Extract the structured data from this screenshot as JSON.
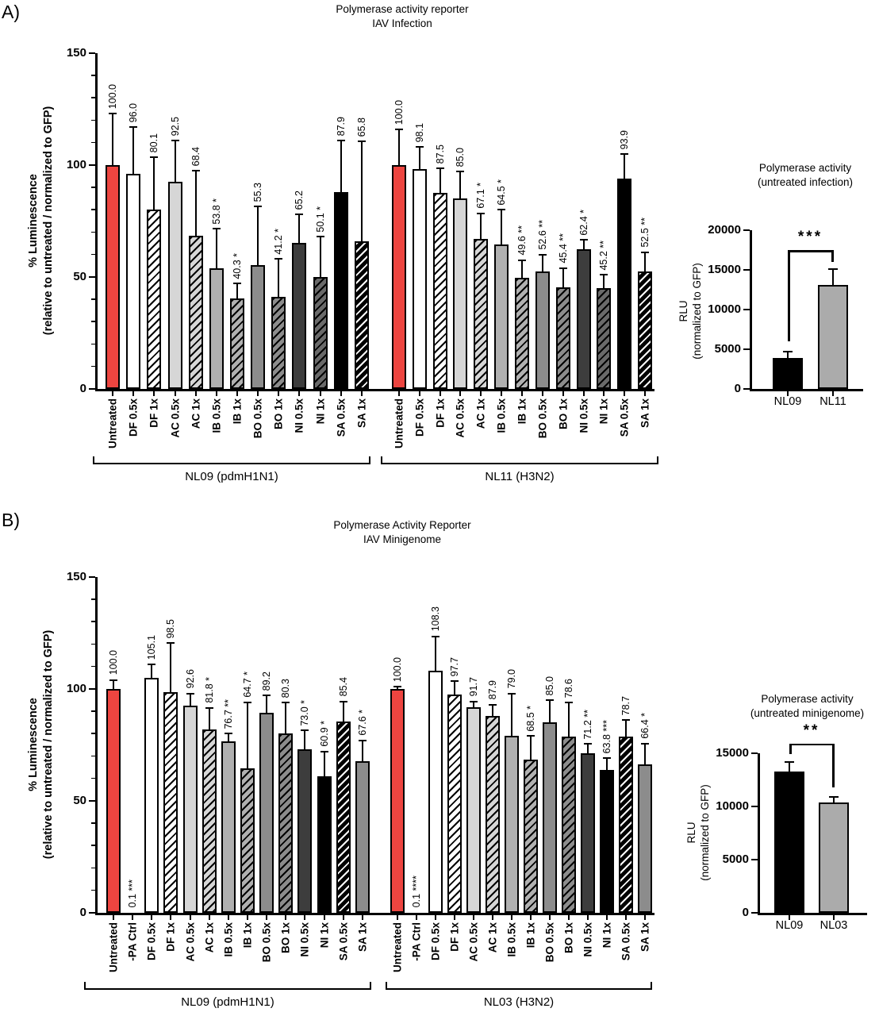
{
  "figure": {
    "panels": [
      {
        "letter": "A)"
      },
      {
        "letter": "B)"
      }
    ]
  },
  "colors": {
    "red": "#ED4540",
    "light_gray": "#D6D6D6",
    "mid_gray": "#B0B0B0",
    "gray": "#8C8C8C",
    "dark_gray": "#3D3D3D",
    "black": "#000000",
    "mini_gray": "#ABABAB"
  },
  "chart_data": [
    {
      "type": "bar",
      "panel": "A",
      "title": "Polymerase activity reporter",
      "subtitle": "IAV Infection",
      "ylabel_line1": "% Luminescence",
      "ylabel_line2": "(relative to untreated / normalized to GFP)",
      "ylim": [
        0,
        150
      ],
      "ymajor": 50,
      "yminor": 10,
      "grid": false,
      "groups": [
        {
          "label": "NL09 (pdmH1N1)",
          "bars": [
            {
              "label": "Untreated",
              "display": "100.0",
              "err_top": 123,
              "sig": "",
              "style": "red"
            },
            {
              "label": "DF 0.5x",
              "display": "96.0",
              "err_top": 117,
              "sig": "",
              "style": "white"
            },
            {
              "label": "DF 1x",
              "display": "80.1",
              "err_top": 103.5,
              "sig": "",
              "style": "hatch_white"
            },
            {
              "label": "AC 0.5x",
              "display": "92.5",
              "err_top": 111,
              "sig": "",
              "style": "light_gray"
            },
            {
              "label": "AC 1x",
              "display": "68.4",
              "err_top": 97.5,
              "sig": "",
              "style": "hatch_light_gray"
            },
            {
              "label": "IB 0.5x",
              "display": "53.8",
              "err_top": 71.5,
              "sig": "*",
              "style": "mid_gray"
            },
            {
              "label": "IB 1x",
              "display": "40.3",
              "err_top": 47,
              "sig": "*",
              "style": "hatch_mid_gray"
            },
            {
              "label": "BO 0.5x",
              "display": "55.3",
              "err_top": 81.5,
              "sig": "",
              "style": "gray"
            },
            {
              "label": "BO 1x",
              "display": "41.2",
              "err_top": 58,
              "sig": "*",
              "style": "hatch_gray"
            },
            {
              "label": "NI 0.5x",
              "display": "65.2",
              "err_top": 78,
              "sig": "",
              "style": "dark_gray"
            },
            {
              "label": "NI 1x",
              "display": "50.1",
              "err_top": 68,
              "sig": "*",
              "style": "hatch_dark_gray"
            },
            {
              "label": "SA 0.5x",
              "display": "87.9",
              "err_top": 111,
              "sig": "",
              "style": "black"
            },
            {
              "label": "SA 1x",
              "display": "65.8",
              "err_top": 110.5,
              "sig": "",
              "style": "hatch_black"
            }
          ]
        },
        {
          "label": "NL11 (H3N2)",
          "bars": [
            {
              "label": "Untreated",
              "display": "100.0",
              "err_top": 116,
              "sig": "",
              "style": "red"
            },
            {
              "label": "DF 0.5x",
              "display": "98.1",
              "err_top": 108,
              "sig": "",
              "style": "white"
            },
            {
              "label": "DF 1x",
              "display": "87.5",
              "err_top": 98.5,
              "sig": "",
              "style": "hatch_white"
            },
            {
              "label": "AC 0.5x",
              "display": "85.0",
              "err_top": 97,
              "sig": "",
              "style": "light_gray"
            },
            {
              "label": "AC 1x",
              "display": "67.1",
              "err_top": 78.5,
              "sig": "*",
              "style": "hatch_light_gray"
            },
            {
              "label": "IB 0.5x",
              "display": "64.5",
              "err_top": 80,
              "sig": "*",
              "style": "mid_gray"
            },
            {
              "label": "IB 1x",
              "display": "49.6",
              "err_top": 57.5,
              "sig": "**",
              "style": "hatch_mid_gray"
            },
            {
              "label": "BO 0.5x",
              "display": "52.6",
              "err_top": 60,
              "sig": "**",
              "style": "gray"
            },
            {
              "label": "BO 1x",
              "display": "45.4",
              "err_top": 54,
              "sig": "**",
              "style": "hatch_gray"
            },
            {
              "label": "NI 0.5x",
              "display": "62.4",
              "err_top": 66.5,
              "sig": "*",
              "style": "dark_gray"
            },
            {
              "label": "NI 1x",
              "display": "45.2",
              "err_top": 51,
              "sig": "**",
              "style": "hatch_dark_gray"
            },
            {
              "label": "SA 0.5x",
              "display": "93.9",
              "err_top": 105,
              "sig": "",
              "style": "black"
            },
            {
              "label": "SA 1x",
              "display": "52.5",
              "err_top": 61,
              "sig": "**",
              "style": "hatch_black"
            }
          ]
        }
      ]
    },
    {
      "type": "bar",
      "panel": "A-inset",
      "title": "Polymerase activity",
      "subtitle": "(untreated infection)",
      "ylabel_line1": "RLU",
      "ylabel_line2": "(normalized to GFP)",
      "ylim": [
        0,
        20000
      ],
      "ymajor": 5000,
      "grid": false,
      "categories": [
        "NL09",
        "NL11"
      ],
      "bars": [
        {
          "label": "NL09",
          "value": 3900,
          "err_top": 4700,
          "style": "black"
        },
        {
          "label": "NL11",
          "value": 13100,
          "err_top": 15100,
          "style": "mini_gray"
        }
      ],
      "sig": {
        "label": "***",
        "bar_y": 17500,
        "drop_left_to": 6000,
        "drop_right_to": 16000
      }
    },
    {
      "type": "bar",
      "panel": "B",
      "title": "Polymerase Activity Reporter",
      "subtitle": "IAV Minigenome",
      "ylabel_line1": "% Luminescence",
      "ylabel_line2": "(relative to untreated / normalized to GFP)",
      "ylim": [
        0,
        150
      ],
      "ymajor": 50,
      "yminor": 10,
      "grid": false,
      "groups": [
        {
          "label": "NL09 (pdmH1N1)",
          "bars": [
            {
              "label": "Untreated",
              "display": "100.0",
              "err_top": 104,
              "sig": "",
              "style": "red"
            },
            {
              "label": "-PA Ctrl",
              "display": "0.1",
              "err_top": null,
              "sig": "***",
              "style": "white"
            },
            {
              "label": "DF 0.5x",
              "display": "105.1",
              "err_top": 111,
              "sig": "",
              "style": "white"
            },
            {
              "label": "DF 1x",
              "display": "98.5",
              "err_top": 120.5,
              "sig": "",
              "style": "hatch_white"
            },
            {
              "label": "AC 0.5x",
              "display": "92.6",
              "err_top": 98,
              "sig": "",
              "style": "light_gray"
            },
            {
              "label": "AC 1x",
              "display": "81.8",
              "err_top": 91.5,
              "sig": "*",
              "style": "hatch_light_gray"
            },
            {
              "label": "IB 0.5x",
              "display": "76.7",
              "err_top": 80,
              "sig": "**",
              "style": "mid_gray"
            },
            {
              "label": "IB 1x",
              "display": "64.7",
              "err_top": 94,
              "sig": "*",
              "style": "hatch_mid_gray"
            },
            {
              "label": "BO 0.5x",
              "display": "89.2",
              "err_top": 97,
              "sig": "",
              "style": "gray"
            },
            {
              "label": "BO 1x",
              "display": "80.3",
              "err_top": 94,
              "sig": "",
              "style": "hatch_gray"
            },
            {
              "label": "NI 0.5x",
              "display": "73.0",
              "err_top": 81.5,
              "sig": "*",
              "style": "dark_gray"
            },
            {
              "label": "NI 1x",
              "display": "60.9",
              "err_top": 72,
              "sig": "*",
              "style": "black"
            },
            {
              "label": "SA 0.5x",
              "display": "85.4",
              "err_top": 94.5,
              "sig": "",
              "style": "hatch_black"
            },
            {
              "label": "SA 1x",
              "display": "67.6",
              "err_top": 77,
              "sig": "*",
              "style": "gray"
            }
          ]
        },
        {
          "label": "NL03 (H3N2)",
          "bars": [
            {
              "label": "Untreated",
              "display": "100.0",
              "err_top": 101,
              "sig": "",
              "style": "red"
            },
            {
              "label": "-PA Ctrl",
              "display": "0.1",
              "err_top": null,
              "sig": "****",
              "style": "white"
            },
            {
              "label": "DF 0.5x",
              "display": "108.3",
              "err_top": 123.5,
              "sig": "",
              "style": "white"
            },
            {
              "label": "DF 1x",
              "display": "97.7",
              "err_top": 103.5,
              "sig": "",
              "style": "hatch_white"
            },
            {
              "label": "AC 0.5x",
              "display": "91.7",
              "err_top": 94.5,
              "sig": "",
              "style": "light_gray"
            },
            {
              "label": "AC 1x",
              "display": "87.9",
              "err_top": 93,
              "sig": "",
              "style": "hatch_light_gray"
            },
            {
              "label": "IB 0.5x",
              "display": "79.0",
              "err_top": 98,
              "sig": "",
              "style": "mid_gray"
            },
            {
              "label": "IB 1x",
              "display": "68.5",
              "err_top": 79,
              "sig": "*",
              "style": "hatch_mid_gray"
            },
            {
              "label": "BO 0.5x",
              "display": "85.0",
              "err_top": 95,
              "sig": "",
              "style": "gray"
            },
            {
              "label": "BO 1x",
              "display": "78.6",
              "err_top": 94,
              "sig": "",
              "style": "hatch_gray"
            },
            {
              "label": "NI 0.5x",
              "display": "71.2",
              "err_top": 75.5,
              "sig": "**",
              "style": "dark_gray"
            },
            {
              "label": "NI 1x",
              "display": "63.8",
              "err_top": 69,
              "sig": "***",
              "style": "black"
            },
            {
              "label": "SA 0.5x",
              "display": "78.7",
              "err_top": 86,
              "sig": "",
              "style": "hatch_black"
            },
            {
              "label": "SA 1x",
              "display": "66.4",
              "err_top": 75.5,
              "sig": "*",
              "style": "gray"
            }
          ]
        }
      ]
    },
    {
      "type": "bar",
      "panel": "B-inset",
      "title": "Polymerase activity",
      "subtitle": "(untreated minigenome)",
      "ylabel_line1": "RLU",
      "ylabel_line2": "(normalized to GFP)",
      "ylim": [
        0,
        15000
      ],
      "ymajor": 5000,
      "grid": false,
      "categories": [
        "NL09",
        "NL03"
      ],
      "bars": [
        {
          "label": "NL09",
          "value": 13300,
          "err_top": 14200,
          "style": "black"
        },
        {
          "label": "NL03",
          "value": 10400,
          "err_top": 10900,
          "style": "mini_gray"
        }
      ],
      "sig": {
        "label": "**",
        "bar_y": 15900,
        "drop_left_to": 14900,
        "drop_right_to": 11800
      }
    }
  ]
}
